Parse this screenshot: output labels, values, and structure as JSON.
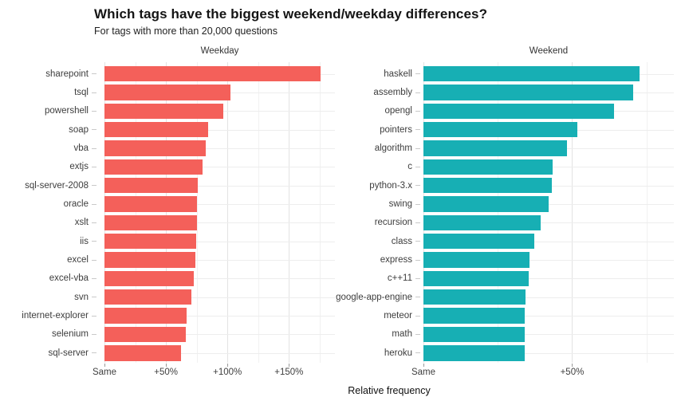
{
  "header": {
    "title": "Which tags have the biggest weekend/weekday differences?",
    "subtitle": "For tags with more than 20,000 questions"
  },
  "chart_data": {
    "type": "bar",
    "orientation": "horizontal",
    "xlabel": "Relative frequency",
    "grid": true,
    "value_unit": "percent above Same",
    "facets": [
      {
        "title": "Weekday",
        "color": "#F4605A",
        "xlim": [
          0,
          187.4
        ],
        "ticks": [
          {
            "value": 0,
            "label": "Same"
          },
          {
            "value": 50,
            "label": "+50%"
          },
          {
            "value": 100,
            "label": "+100%"
          },
          {
            "value": 150,
            "label": "+150%"
          }
        ],
        "minor_ticks": [
          25,
          75,
          125,
          175
        ],
        "categories": [
          "sharepoint",
          "tsql",
          "powershell",
          "soap",
          "vba",
          "extjs",
          "sql-server-2008",
          "oracle",
          "xslt",
          "iis",
          "excel",
          "excel-vba",
          "svn",
          "internet-explorer",
          "selenium",
          "sql-server"
        ],
        "values": [
          176.0,
          102.7,
          96.6,
          84.3,
          82.1,
          79.6,
          76.1,
          75.4,
          75.0,
          74.6,
          73.7,
          72.4,
          70.7,
          67.0,
          65.9,
          62.3
        ]
      },
      {
        "title": "Weekend",
        "color": "#17AFB4",
        "xlim": [
          0,
          84.2
        ],
        "ticks": [
          {
            "value": 0,
            "label": "Same"
          },
          {
            "value": 50,
            "label": "+50%"
          }
        ],
        "minor_ticks": [
          25,
          75
        ],
        "categories": [
          "haskell",
          "assembly",
          "opengl",
          "pointers",
          "algorithm",
          "c",
          "python-3.x",
          "swing",
          "recursion",
          "class",
          "express",
          "c++11",
          "google-app-engine",
          "meteor",
          "math",
          "heroku"
        ],
        "values": [
          72.8,
          70.4,
          64.2,
          51.7,
          48.3,
          43.5,
          43.3,
          42.0,
          39.3,
          37.2,
          35.7,
          35.4,
          34.2,
          34.1,
          34.1,
          34.0
        ]
      }
    ]
  }
}
